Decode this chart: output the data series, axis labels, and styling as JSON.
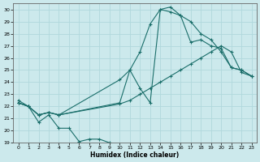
{
  "xlabel": "Humidex (Indice chaleur)",
  "xlim": [
    -0.5,
    23.5
  ],
  "ylim": [
    19,
    30.5
  ],
  "yticks": [
    19,
    20,
    21,
    22,
    23,
    24,
    25,
    26,
    27,
    28,
    29,
    30
  ],
  "xticks": [
    0,
    1,
    2,
    3,
    4,
    5,
    6,
    7,
    8,
    9,
    10,
    11,
    12,
    13,
    14,
    15,
    16,
    17,
    18,
    19,
    20,
    21,
    22,
    23
  ],
  "bg_color": "#cce9ec",
  "grid_color": "#b0d8dc",
  "line_color": "#1a6e6a",
  "line1": {
    "x": [
      0,
      1,
      2,
      3,
      4,
      5,
      6,
      7,
      8,
      9
    ],
    "y": [
      22.5,
      22.0,
      20.7,
      21.3,
      20.2,
      20.2,
      19.1,
      19.3,
      19.3,
      19.0
    ]
  },
  "line2": {
    "x": [
      0,
      1,
      2,
      3,
      4,
      10,
      11,
      12,
      13,
      14,
      15,
      16,
      17,
      18,
      19,
      20,
      21,
      22,
      23
    ],
    "y": [
      22.3,
      22.0,
      21.3,
      21.5,
      21.3,
      22.2,
      22.5,
      23.0,
      23.5,
      24.0,
      24.5,
      25.0,
      25.5,
      26.0,
      26.5,
      27.0,
      26.5,
      24.8,
      24.5
    ]
  },
  "line3": {
    "x": [
      0,
      1,
      2,
      3,
      4,
      10,
      11,
      12,
      13,
      14,
      15,
      16,
      17,
      18,
      19,
      20,
      21,
      22,
      23
    ],
    "y": [
      22.3,
      22.0,
      21.3,
      21.5,
      21.3,
      24.2,
      25.0,
      26.5,
      28.8,
      30.0,
      30.2,
      29.5,
      29.0,
      28.0,
      27.5,
      26.5,
      25.2,
      25.0,
      24.5
    ]
  },
  "line4": {
    "x": [
      0,
      1,
      2,
      3,
      4,
      10,
      11,
      12,
      13,
      14,
      15,
      16,
      17,
      18,
      19,
      20,
      21,
      22,
      23
    ],
    "y": [
      22.3,
      22.0,
      21.3,
      21.5,
      21.3,
      22.3,
      25.0,
      23.5,
      22.3,
      30.0,
      29.8,
      29.5,
      27.3,
      27.5,
      27.0,
      26.8,
      25.2,
      25.0,
      24.5
    ]
  }
}
